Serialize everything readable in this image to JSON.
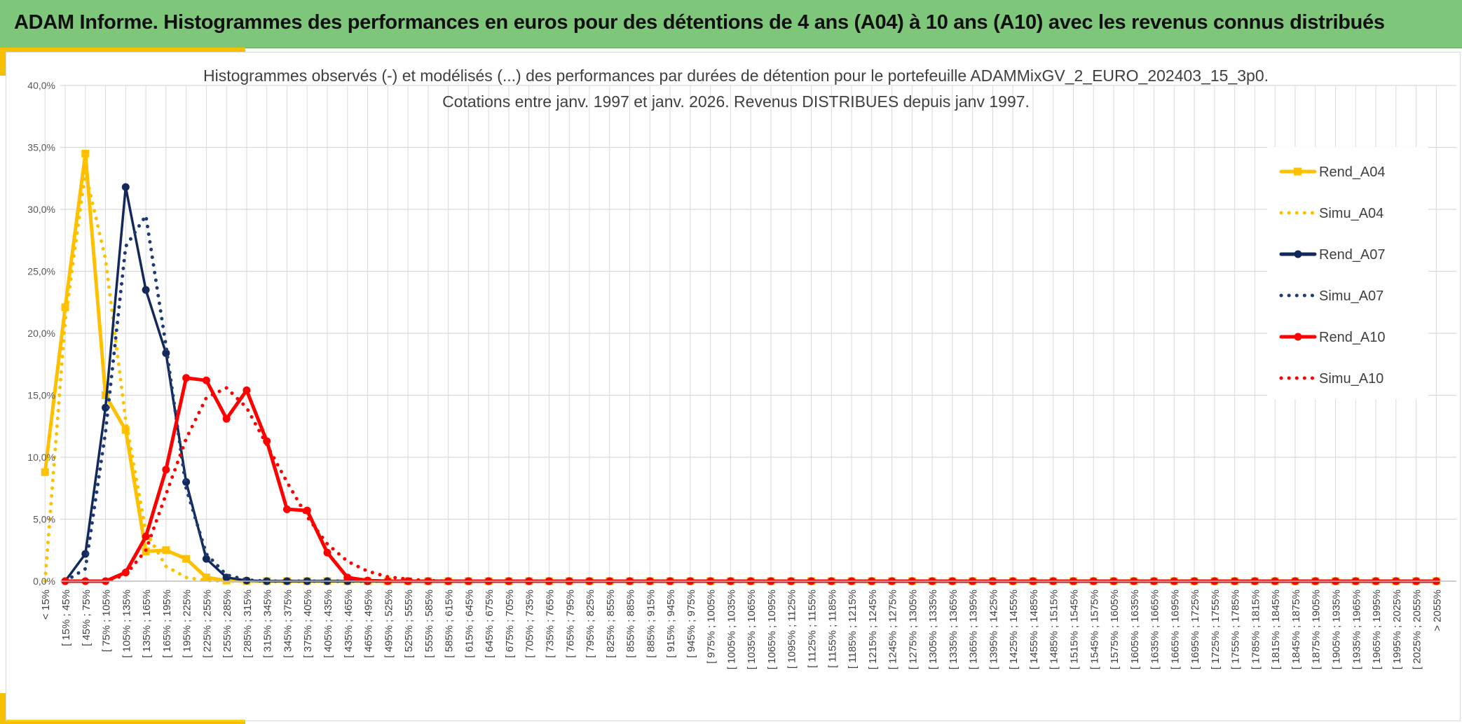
{
  "header": {
    "title": "ADAM Informe. Histogrammes des performances en euros pour des détentions de 4 ans (A04) à 10 ans (A10) avec les revenus connus distribués"
  },
  "colors": {
    "banner": "#7dc67a",
    "accent": "#f5c000",
    "a04": "#ffc000",
    "a07": "#12295a",
    "a10": "#ff0000",
    "grid": "#d9d9d9"
  },
  "chart_data": {
    "type": "line",
    "title_lines": [
      "Histogrammes observés (-) et modélisés (...) des performances par durées de détention pour le portefeuille ADAMMixGV_2_EURO_202403_15_3p0.",
      "Cotations entre janv. 1997 et janv. 2026. Revenus DISTRIBUES depuis janv 1997."
    ],
    "y_ticks": [
      "0,0%",
      "5,0%",
      "10,0%",
      "15,0%",
      "20,0%",
      "25,0%",
      "30,0%",
      "35,0%",
      "40,0%"
    ],
    "ylim": [
      0,
      40
    ],
    "grid": true,
    "legend_position": "right",
    "categories": [
      "< 15%",
      "[ 15% ; 45%",
      "[ 45% ; 75%",
      "[ 75% ; 105%",
      "[ 105% ; 135%",
      "[ 135% ; 165%",
      "[ 165% ; 195%",
      "[ 195% ; 225%",
      "[ 225% ; 255%",
      "[ 255% ; 285%",
      "[ 285% ; 315%",
      "[ 315% ; 345%",
      "[ 345% ; 375%",
      "[ 375% ; 405%",
      "[ 405% ; 435%",
      "[ 435% ; 465%",
      "[ 465% ; 495%",
      "[ 495% ; 525%",
      "[ 525% ; 555%",
      "[ 555% ; 585%",
      "[ 585% ; 615%",
      "[ 615% ; 645%",
      "[ 645% ; 675%",
      "[ 675% ; 705%",
      "[ 705% ; 735%",
      "[ 735% ; 765%",
      "[ 765% ; 795%",
      "[ 795% ; 825%",
      "[ 825% ; 855%",
      "[ 855% ; 885%",
      "[ 885% ; 915%",
      "[ 915% ; 945%",
      "[ 945% ; 975%",
      "[ 975% ; 1005%",
      "[ 1005% ; 1035%",
      "[ 1035% ; 1065%",
      "[ 1065% ; 1095%",
      "[ 1095% ; 1125%",
      "[ 1125% ; 1155%",
      "[ 1155% ; 1185%",
      "[ 1185% ; 1215%",
      "[ 1215% ; 1245%",
      "[ 1245% ; 1275%",
      "[ 1275% ; 1305%",
      "[ 1305% ; 1335%",
      "[ 1335% ; 1365%",
      "[ 1365% ; 1395%",
      "[ 1395% ; 1425%",
      "[ 1425% ; 1455%",
      "[ 1455% ; 1485%",
      "[ 1485% ; 1515%",
      "[ 1515% ; 1545%",
      "[ 1545% ; 1575%",
      "[ 1575% ; 1605%",
      "[ 1605% ; 1635%",
      "[ 1635% ; 1665%",
      "[ 1665% ; 1695%",
      "[ 1695% ; 1725%",
      "[ 1725% ; 1755%",
      "[ 1755% ; 1785%",
      "[ 1785% ; 1815%",
      "[ 1815% ; 1845%",
      "[ 1845% ; 1875%",
      "[ 1875% ; 1905%",
      "[ 1905% ; 1935%",
      "[ 1935% ; 1965%",
      "[ 1965% ; 1995%",
      "[ 1995% ; 2025%",
      "[ 2025% ; 2055%",
      "> 2055%"
    ],
    "series": [
      {
        "name": "Rend_A04",
        "style": "solid",
        "marker": "square",
        "color": "#ffc000",
        "values": [
          8.8,
          22.1,
          34.5,
          15.0,
          12.2,
          2.4,
          2.5,
          1.8,
          0.3,
          0.05,
          0,
          0,
          0,
          0,
          0,
          0,
          0,
          0,
          0,
          0,
          0,
          0,
          0,
          0,
          0,
          0,
          0,
          0,
          0,
          0,
          0,
          0,
          0,
          0,
          0,
          0,
          0,
          0,
          0,
          0,
          0,
          0,
          0,
          0,
          0,
          0,
          0,
          0,
          0,
          0,
          0,
          0,
          0,
          0,
          0,
          0,
          0,
          0,
          0,
          0,
          0,
          0,
          0,
          0,
          0,
          0,
          0,
          0,
          0,
          0
        ]
      },
      {
        "name": "Simu_A04",
        "style": "dotted",
        "marker": "none",
        "color": "#ffc000",
        "values": [
          0,
          21.0,
          33.0,
          26.0,
          13.0,
          4.0,
          1.2,
          0.3,
          0.05,
          0,
          0,
          0,
          0,
          0,
          0,
          0,
          0,
          0,
          0,
          0,
          0,
          0,
          0,
          0,
          0,
          0,
          0,
          0,
          0,
          0,
          0,
          0,
          0,
          0,
          0,
          0,
          0,
          0,
          0,
          0,
          0,
          0,
          0,
          0,
          0,
          0,
          0,
          0,
          0,
          0,
          0,
          0,
          0,
          0,
          0,
          0,
          0,
          0,
          0,
          0,
          0,
          0,
          0,
          0,
          0,
          0,
          0,
          0,
          0,
          0
        ]
      },
      {
        "name": "Rend_A07",
        "style": "solid",
        "marker": "circle",
        "color": "#12295a",
        "values": [
          null,
          0,
          2.2,
          14.0,
          31.8,
          23.5,
          18.4,
          8.0,
          1.8,
          0.3,
          0.05,
          0,
          0,
          0,
          0,
          0,
          0,
          0,
          0,
          0,
          0,
          0,
          0,
          0,
          0,
          0,
          0,
          0,
          0,
          0,
          0,
          0,
          0,
          0,
          0,
          0,
          0,
          0,
          0,
          0,
          0,
          0,
          0,
          0,
          0,
          0,
          0,
          0,
          0,
          0,
          0,
          0,
          0,
          0,
          0,
          0,
          0,
          0,
          0,
          0,
          0,
          0,
          0,
          0,
          0,
          0,
          0,
          0,
          0,
          0
        ]
      },
      {
        "name": "Simu_A07",
        "style": "dotted",
        "marker": "none",
        "color": "#1f3b73",
        "values": [
          null,
          0,
          1.0,
          12.0,
          27.0,
          29.5,
          19.0,
          7.5,
          2.2,
          0.5,
          0.1,
          0,
          0,
          0,
          0,
          0,
          0,
          0,
          0,
          0,
          0,
          0,
          0,
          0,
          0,
          0,
          0,
          0,
          0,
          0,
          0,
          0,
          0,
          0,
          0,
          0,
          0,
          0,
          0,
          0,
          0,
          0,
          0,
          0,
          0,
          0,
          0,
          0,
          0,
          0,
          0,
          0,
          0,
          0,
          0,
          0,
          0,
          0,
          0,
          0,
          0,
          0,
          0,
          0,
          0,
          0,
          0,
          0,
          0,
          0
        ]
      },
      {
        "name": "Rend_A10",
        "style": "solid",
        "marker": "circle",
        "color": "#ff0000",
        "values": [
          null,
          0,
          0,
          0,
          0.7,
          3.6,
          9.0,
          16.4,
          16.2,
          13.1,
          15.4,
          11.3,
          5.8,
          5.7,
          2.3,
          0.3,
          0.05,
          0,
          0,
          0,
          0,
          0,
          0,
          0,
          0,
          0,
          0,
          0,
          0,
          0,
          0,
          0,
          0,
          0,
          0,
          0,
          0,
          0,
          0,
          0,
          0,
          0,
          0,
          0,
          0,
          0,
          0,
          0,
          0,
          0,
          0,
          0,
          0,
          0,
          0,
          0,
          0,
          0,
          0,
          0,
          0,
          0,
          0,
          0,
          0,
          0,
          0,
          0,
          0,
          0
        ]
      },
      {
        "name": "Simu_A10",
        "style": "dotted",
        "marker": "none",
        "color": "#ff0000",
        "values": [
          null,
          0,
          0,
          0,
          0.5,
          2.5,
          7.0,
          11.5,
          14.8,
          15.6,
          14.0,
          11.0,
          8.0,
          5.2,
          3.0,
          1.6,
          0.8,
          0.35,
          0.15,
          0.05,
          0,
          0,
          0,
          0,
          0,
          0,
          0,
          0,
          0,
          0,
          0,
          0,
          0,
          0,
          0,
          0,
          0,
          0,
          0,
          0,
          0,
          0,
          0,
          0,
          0,
          0,
          0,
          0,
          0,
          0,
          0,
          0,
          0,
          0,
          0,
          0,
          0,
          0,
          0,
          0,
          0,
          0,
          0,
          0,
          0,
          0,
          0,
          0,
          0,
          0
        ]
      }
    ]
  }
}
